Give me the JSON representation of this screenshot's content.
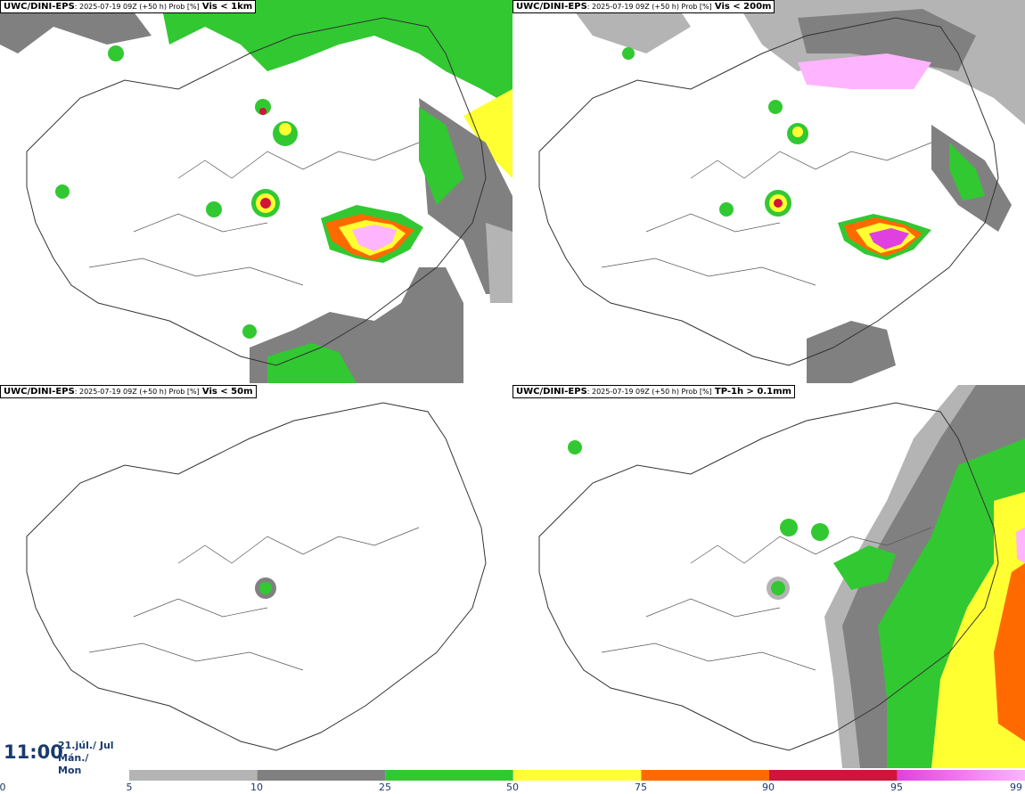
{
  "panels": [
    {
      "model": "UWC/DINI-EPS",
      "meta": ": 2025-07-19 09Z (+50 h) Prob [%]",
      "param": "Vis < 1km"
    },
    {
      "model": "UWC/DINI-EPS",
      "meta": ": 2025-07-19 09Z (+50 h) Prob [%]",
      "param": "Vis < 200m"
    },
    {
      "model": "UWC/DINI-EPS",
      "meta": ": 2025-07-19 09Z (+50 h) Prob [%]",
      "param": "Vis < 50m"
    },
    {
      "model": "UWC/DINI-EPS",
      "meta": ": 2025-07-19 09Z (+50 h) Prob [%]",
      "param": "TP-1h > 0.1mm"
    }
  ],
  "valid_time": {
    "time": "11:00",
    "date": "21.júl./ Jul",
    "weekday": "Mán./ Mon"
  },
  "colorbar": {
    "ticks": [
      "0",
      "5",
      "10",
      "25",
      "50",
      "75",
      "90",
      "95",
      "99"
    ],
    "colors": [
      "#b4b4b4",
      "#808080",
      "#32c832",
      "#ffff32",
      "#ff6a00",
      "#d2143c",
      "#e040e0",
      "#ffb4ff"
    ]
  }
}
